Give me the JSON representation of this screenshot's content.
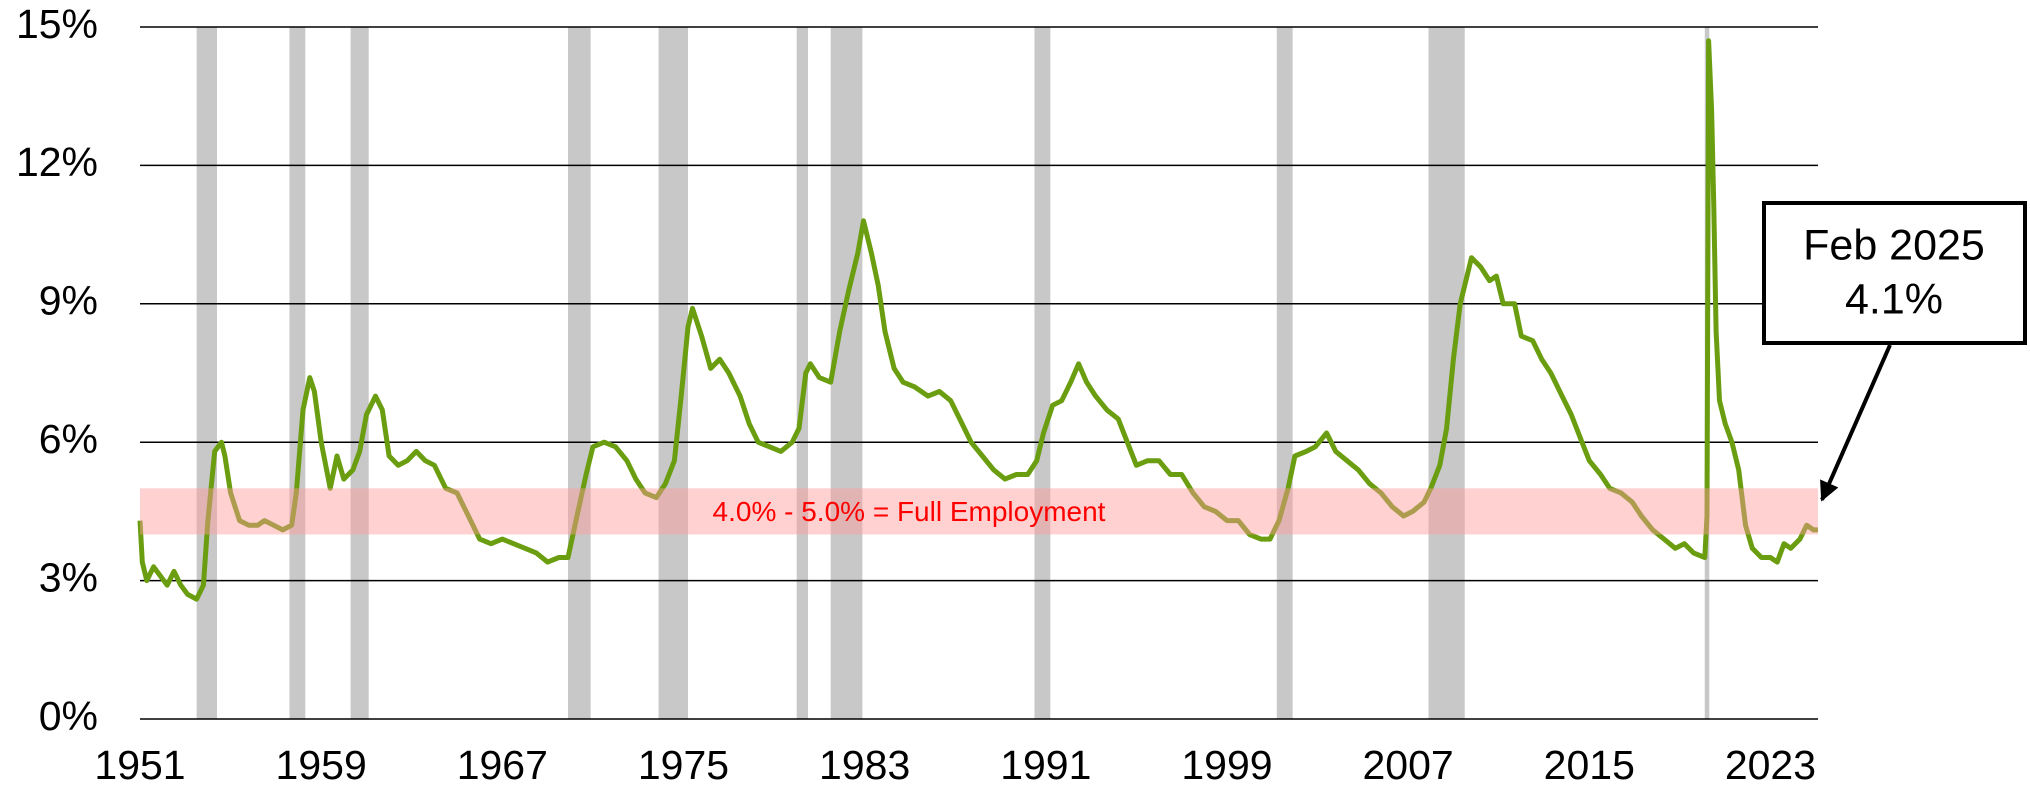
{
  "chart_data": {
    "type": "line",
    "color": "#6a9e10",
    "x": [
      1951.0,
      1951.1,
      1951.3,
      1951.6,
      1951.9,
      1952.2,
      1952.5,
      1952.8,
      1953.1,
      1953.5,
      1953.8,
      1954.0,
      1954.3,
      1954.6,
      1954.75,
      1955.0,
      1955.4,
      1955.8,
      1956.2,
      1956.5,
      1956.9,
      1957.3,
      1957.7,
      1957.9,
      1958.2,
      1958.5,
      1958.7,
      1959.0,
      1959.4,
      1959.7,
      1960.0,
      1960.4,
      1960.7,
      1961.0,
      1961.4,
      1961.7,
      1962.0,
      1962.4,
      1962.8,
      1963.2,
      1963.6,
      1964.0,
      1964.5,
      1965.0,
      1965.5,
      1966.0,
      1966.5,
      1967.0,
      1967.5,
      1968.0,
      1968.5,
      1969.0,
      1969.5,
      1969.9,
      1970.3,
      1970.7,
      1971.0,
      1971.5,
      1972.0,
      1972.5,
      1972.9,
      1973.3,
      1973.8,
      1974.2,
      1974.6,
      1974.9,
      1975.2,
      1975.4,
      1975.8,
      1976.2,
      1976.6,
      1977.0,
      1977.5,
      1977.9,
      1978.3,
      1978.8,
      1979.3,
      1979.8,
      1980.1,
      1980.4,
      1980.6,
      1981.0,
      1981.5,
      1981.9,
      1982.3,
      1982.7,
      1982.95,
      1983.3,
      1983.6,
      1983.9,
      1984.3,
      1984.7,
      1985.2,
      1985.8,
      1986.3,
      1986.8,
      1987.2,
      1987.7,
      1988.2,
      1988.7,
      1989.2,
      1989.7,
      1990.2,
      1990.6,
      1990.9,
      1991.3,
      1991.7,
      1992.1,
      1992.45,
      1992.8,
      1993.2,
      1993.7,
      1994.2,
      1994.6,
      1995.0,
      1995.5,
      1996.0,
      1996.5,
      1997.0,
      1997.5,
      1998.0,
      1998.5,
      1999.0,
      1999.5,
      2000.0,
      2000.5,
      2000.9,
      2001.3,
      2001.7,
      2002.0,
      2002.5,
      2002.9,
      2003.4,
      2003.8,
      2004.3,
      2004.8,
      2005.3,
      2005.8,
      2006.3,
      2006.8,
      2007.2,
      2007.7,
      2008.0,
      2008.4,
      2008.7,
      2009.0,
      2009.3,
      2009.6,
      2009.8,
      2010.2,
      2010.6,
      2010.9,
      2011.2,
      2011.7,
      2012.0,
      2012.5,
      2012.9,
      2013.3,
      2013.8,
      2014.2,
      2014.6,
      2015.0,
      2015.5,
      2015.9,
      2016.4,
      2016.9,
      2017.3,
      2017.8,
      2018.3,
      2018.8,
      2019.2,
      2019.6,
      2020.1,
      2020.2,
      2020.27,
      2020.4,
      2020.5,
      2020.6,
      2020.75,
      2021.0,
      2021.3,
      2021.6,
      2021.9,
      2022.2,
      2022.6,
      2023.0,
      2023.3,
      2023.6,
      2023.9,
      2024.3,
      2024.6,
      2024.9,
      2025.1
    ],
    "values": [
      4.3,
      3.4,
      3.0,
      3.3,
      3.1,
      2.9,
      3.2,
      2.9,
      2.7,
      2.6,
      2.9,
      4.3,
      5.8,
      6.0,
      5.7,
      4.9,
      4.3,
      4.2,
      4.2,
      4.3,
      4.2,
      4.1,
      4.2,
      4.9,
      6.7,
      7.4,
      7.1,
      6.0,
      5.0,
      5.7,
      5.2,
      5.4,
      5.8,
      6.6,
      7.0,
      6.7,
      5.7,
      5.5,
      5.6,
      5.8,
      5.6,
      5.5,
      5.0,
      4.9,
      4.4,
      3.9,
      3.8,
      3.9,
      3.8,
      3.7,
      3.6,
      3.4,
      3.5,
      3.5,
      4.4,
      5.3,
      5.9,
      6.0,
      5.9,
      5.6,
      5.2,
      4.9,
      4.8,
      5.1,
      5.6,
      7.0,
      8.5,
      8.9,
      8.3,
      7.6,
      7.8,
      7.5,
      7.0,
      6.4,
      6.0,
      5.9,
      5.8,
      6.0,
      6.3,
      7.5,
      7.7,
      7.4,
      7.3,
      8.4,
      9.3,
      10.1,
      10.8,
      10.1,
      9.4,
      8.4,
      7.6,
      7.3,
      7.2,
      7.0,
      7.1,
      6.9,
      6.5,
      6.0,
      5.7,
      5.4,
      5.2,
      5.3,
      5.3,
      5.6,
      6.2,
      6.8,
      6.9,
      7.3,
      7.7,
      7.3,
      7.0,
      6.7,
      6.5,
      6.0,
      5.5,
      5.6,
      5.6,
      5.3,
      5.3,
      4.9,
      4.6,
      4.5,
      4.3,
      4.3,
      4.0,
      3.9,
      3.9,
      4.3,
      5.0,
      5.7,
      5.8,
      5.9,
      6.2,
      5.8,
      5.6,
      5.4,
      5.1,
      4.9,
      4.6,
      4.4,
      4.5,
      4.7,
      5.0,
      5.5,
      6.3,
      7.8,
      9.0,
      9.6,
      10.0,
      9.8,
      9.5,
      9.6,
      9.0,
      9.0,
      8.3,
      8.2,
      7.8,
      7.5,
      7.0,
      6.6,
      6.1,
      5.6,
      5.3,
      5.0,
      4.9,
      4.7,
      4.4,
      4.1,
      3.9,
      3.7,
      3.8,
      3.6,
      3.5,
      4.4,
      14.7,
      13.2,
      11.1,
      8.4,
      6.9,
      6.4,
      6.0,
      5.4,
      4.2,
      3.7,
      3.5,
      3.5,
      3.4,
      3.8,
      3.7,
      3.9,
      4.2,
      4.1,
      4.1
    ],
    "xlim": [
      1951,
      2025.1
    ],
    "xticks": [
      1951,
      1959,
      1967,
      1975,
      1983,
      1991,
      1999,
      2007,
      2015,
      2023
    ],
    "ylim": [
      0,
      15
    ],
    "yticks": [
      {
        "value": 0,
        "label": "0%"
      },
      {
        "value": 3,
        "label": "3%"
      },
      {
        "value": 6,
        "label": "6%"
      },
      {
        "value": 9,
        "label": "9%"
      },
      {
        "value": 12,
        "label": "12%"
      },
      {
        "value": 15,
        "label": "15%"
      }
    ],
    "grid": true,
    "recessions": [
      [
        1953.5,
        1954.4
      ],
      [
        1957.6,
        1958.3
      ],
      [
        1960.3,
        1961.1
      ],
      [
        1969.9,
        1970.9
      ],
      [
        1973.9,
        1975.2
      ],
      [
        1980.0,
        1980.5
      ],
      [
        1981.5,
        1982.9
      ],
      [
        1990.5,
        1991.2
      ],
      [
        2001.2,
        2001.9
      ],
      [
        2007.9,
        2009.5
      ],
      [
        2020.1,
        2020.3
      ]
    ],
    "band": [
      4,
      5
    ],
    "band_label": "4.0% - 5.0% = Full Employment",
    "annotation": [
      "Feb 2025",
      "4.1%"
    ]
  }
}
